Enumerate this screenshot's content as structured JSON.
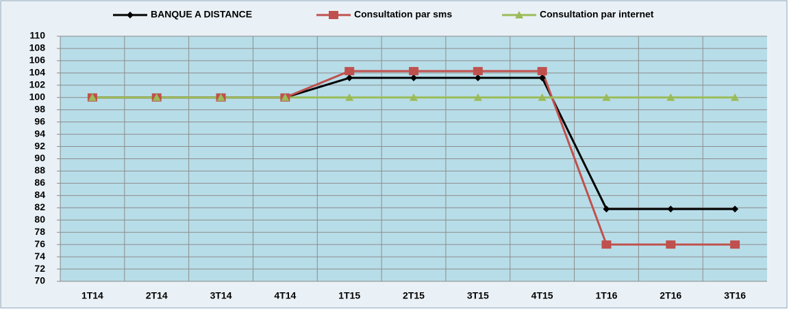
{
  "chart_data": {
    "type": "line",
    "categories": [
      "1T14",
      "2T14",
      "3T14",
      "4T14",
      "1T15",
      "2T15",
      "3T15",
      "4T15",
      "1T16",
      "2T16",
      "3T16"
    ],
    "series": [
      {
        "name": "BANQUE A DISTANCE",
        "color": "#000000",
        "marker": "diamond",
        "values": [
          100,
          100,
          100,
          100,
          103.2,
          103.2,
          103.2,
          103.2,
          81.8,
          81.8,
          81.8
        ]
      },
      {
        "name": "Consultation par sms",
        "color": "#c0504d",
        "marker": "square",
        "values": [
          100,
          100,
          100,
          100,
          104.3,
          104.3,
          104.3,
          104.3,
          76,
          76,
          76
        ]
      },
      {
        "name": "Consultation par internet",
        "color": "#9bbb59",
        "marker": "triangle",
        "values": [
          100,
          100,
          100,
          100,
          100,
          100,
          100,
          100,
          100,
          100,
          100
        ]
      }
    ],
    "ylim": [
      70,
      110
    ],
    "yticks": [
      70,
      72,
      74,
      76,
      78,
      80,
      82,
      84,
      86,
      88,
      90,
      92,
      94,
      96,
      98,
      100,
      102,
      104,
      106,
      108,
      110
    ],
    "grid": true,
    "legend": "top"
  }
}
